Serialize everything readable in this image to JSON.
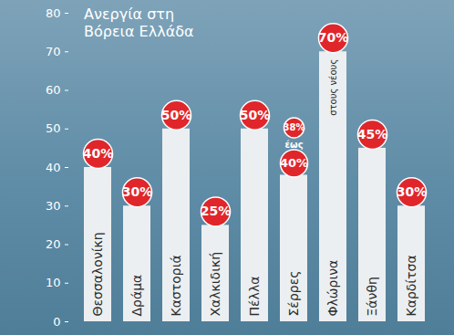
{
  "chart_data": {
    "type": "bar",
    "title": "Ανεργία στη Βόρεια Ελλάδα",
    "categories": [
      "Θεσσαλονίκη",
      "Δράμα",
      "Καστοριά",
      "Χαλκιδική",
      "Πέλλα",
      "Σέρρες",
      "Φλώρινα",
      "Ξάνθη",
      "Καρδίτσα"
    ],
    "values": [
      40,
      30,
      50,
      25,
      50,
      38,
      70,
      45,
      30
    ],
    "value_labels": [
      "40%",
      "30%",
      "50%",
      "25%",
      "50%",
      "38%",
      "70%",
      "45%",
      "30%"
    ],
    "color": "#eceff1",
    "ylim": [
      0,
      80
    ],
    "yticks": [
      0,
      10,
      20,
      30,
      40,
      50,
      60,
      70,
      80
    ],
    "grid": false,
    "data_labels": true,
    "annotations": [
      {
        "category": "Σέρρες",
        "text": "έως"
      },
      {
        "category": "Σέρρες",
        "text": "40%",
        "marker": "badge"
      },
      {
        "category": "Φλώρινα",
        "text": "στους νέους"
      }
    ]
  }
}
